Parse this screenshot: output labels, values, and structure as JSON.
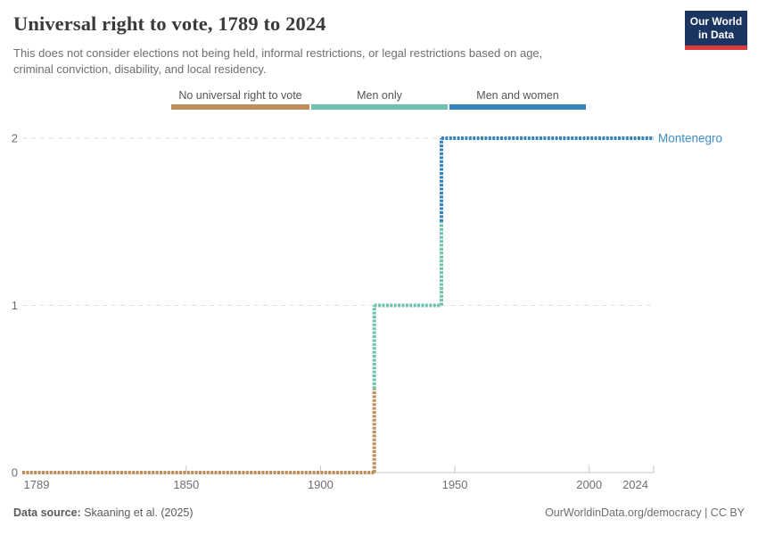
{
  "header": {
    "title": "Universal right to vote, 1789 to 2024",
    "subtitle_line1": "This does not consider elections not being held, informal restrictions, or legal restrictions based on age,",
    "subtitle_line2": "criminal conviction, disability, and local residency.",
    "logo": {
      "line1": "Our World",
      "line2": "in Data",
      "bg_color": "#1a3560",
      "accent_color": "#D73C3E"
    }
  },
  "legend": {
    "items": [
      {
        "label": "No universal right to vote",
        "color": "#BE8E5B"
      },
      {
        "label": "Men only",
        "color": "#6FC2AD"
      },
      {
        "label": "Men and women",
        "color": "#3584BD"
      }
    ]
  },
  "chart_data": {
    "type": "line",
    "line_style": "step",
    "title": "Universal right to vote, 1789 to 2024",
    "entity": "Montenegro",
    "entity_label_color": "#3C8DC5",
    "x_range": [
      1789,
      2024
    ],
    "y_range": [
      0,
      2
    ],
    "x_ticks": [
      1789,
      1850,
      1900,
      1950,
      2000,
      2024
    ],
    "y_ticks": [
      0,
      1,
      2
    ],
    "grid": "dashed horizontal gridlines",
    "legend_position": "top",
    "segments": [
      {
        "category": "No universal right to vote",
        "value": 0,
        "start_year": 1789,
        "end_year": 1920,
        "color": "#BE8E5B"
      },
      {
        "category": "Men only",
        "value": 1,
        "start_year": 1920,
        "end_year": 1945,
        "color": "#6FC2AD"
      },
      {
        "category": "Men and women",
        "value": 2,
        "start_year": 1945,
        "end_year": 2024,
        "color": "#3584BD"
      }
    ]
  },
  "footer": {
    "source_label": "Data source:",
    "source_value": " Skaaning et al. (2025)",
    "rights": "OurWorldinData.org/democracy | CC BY"
  }
}
